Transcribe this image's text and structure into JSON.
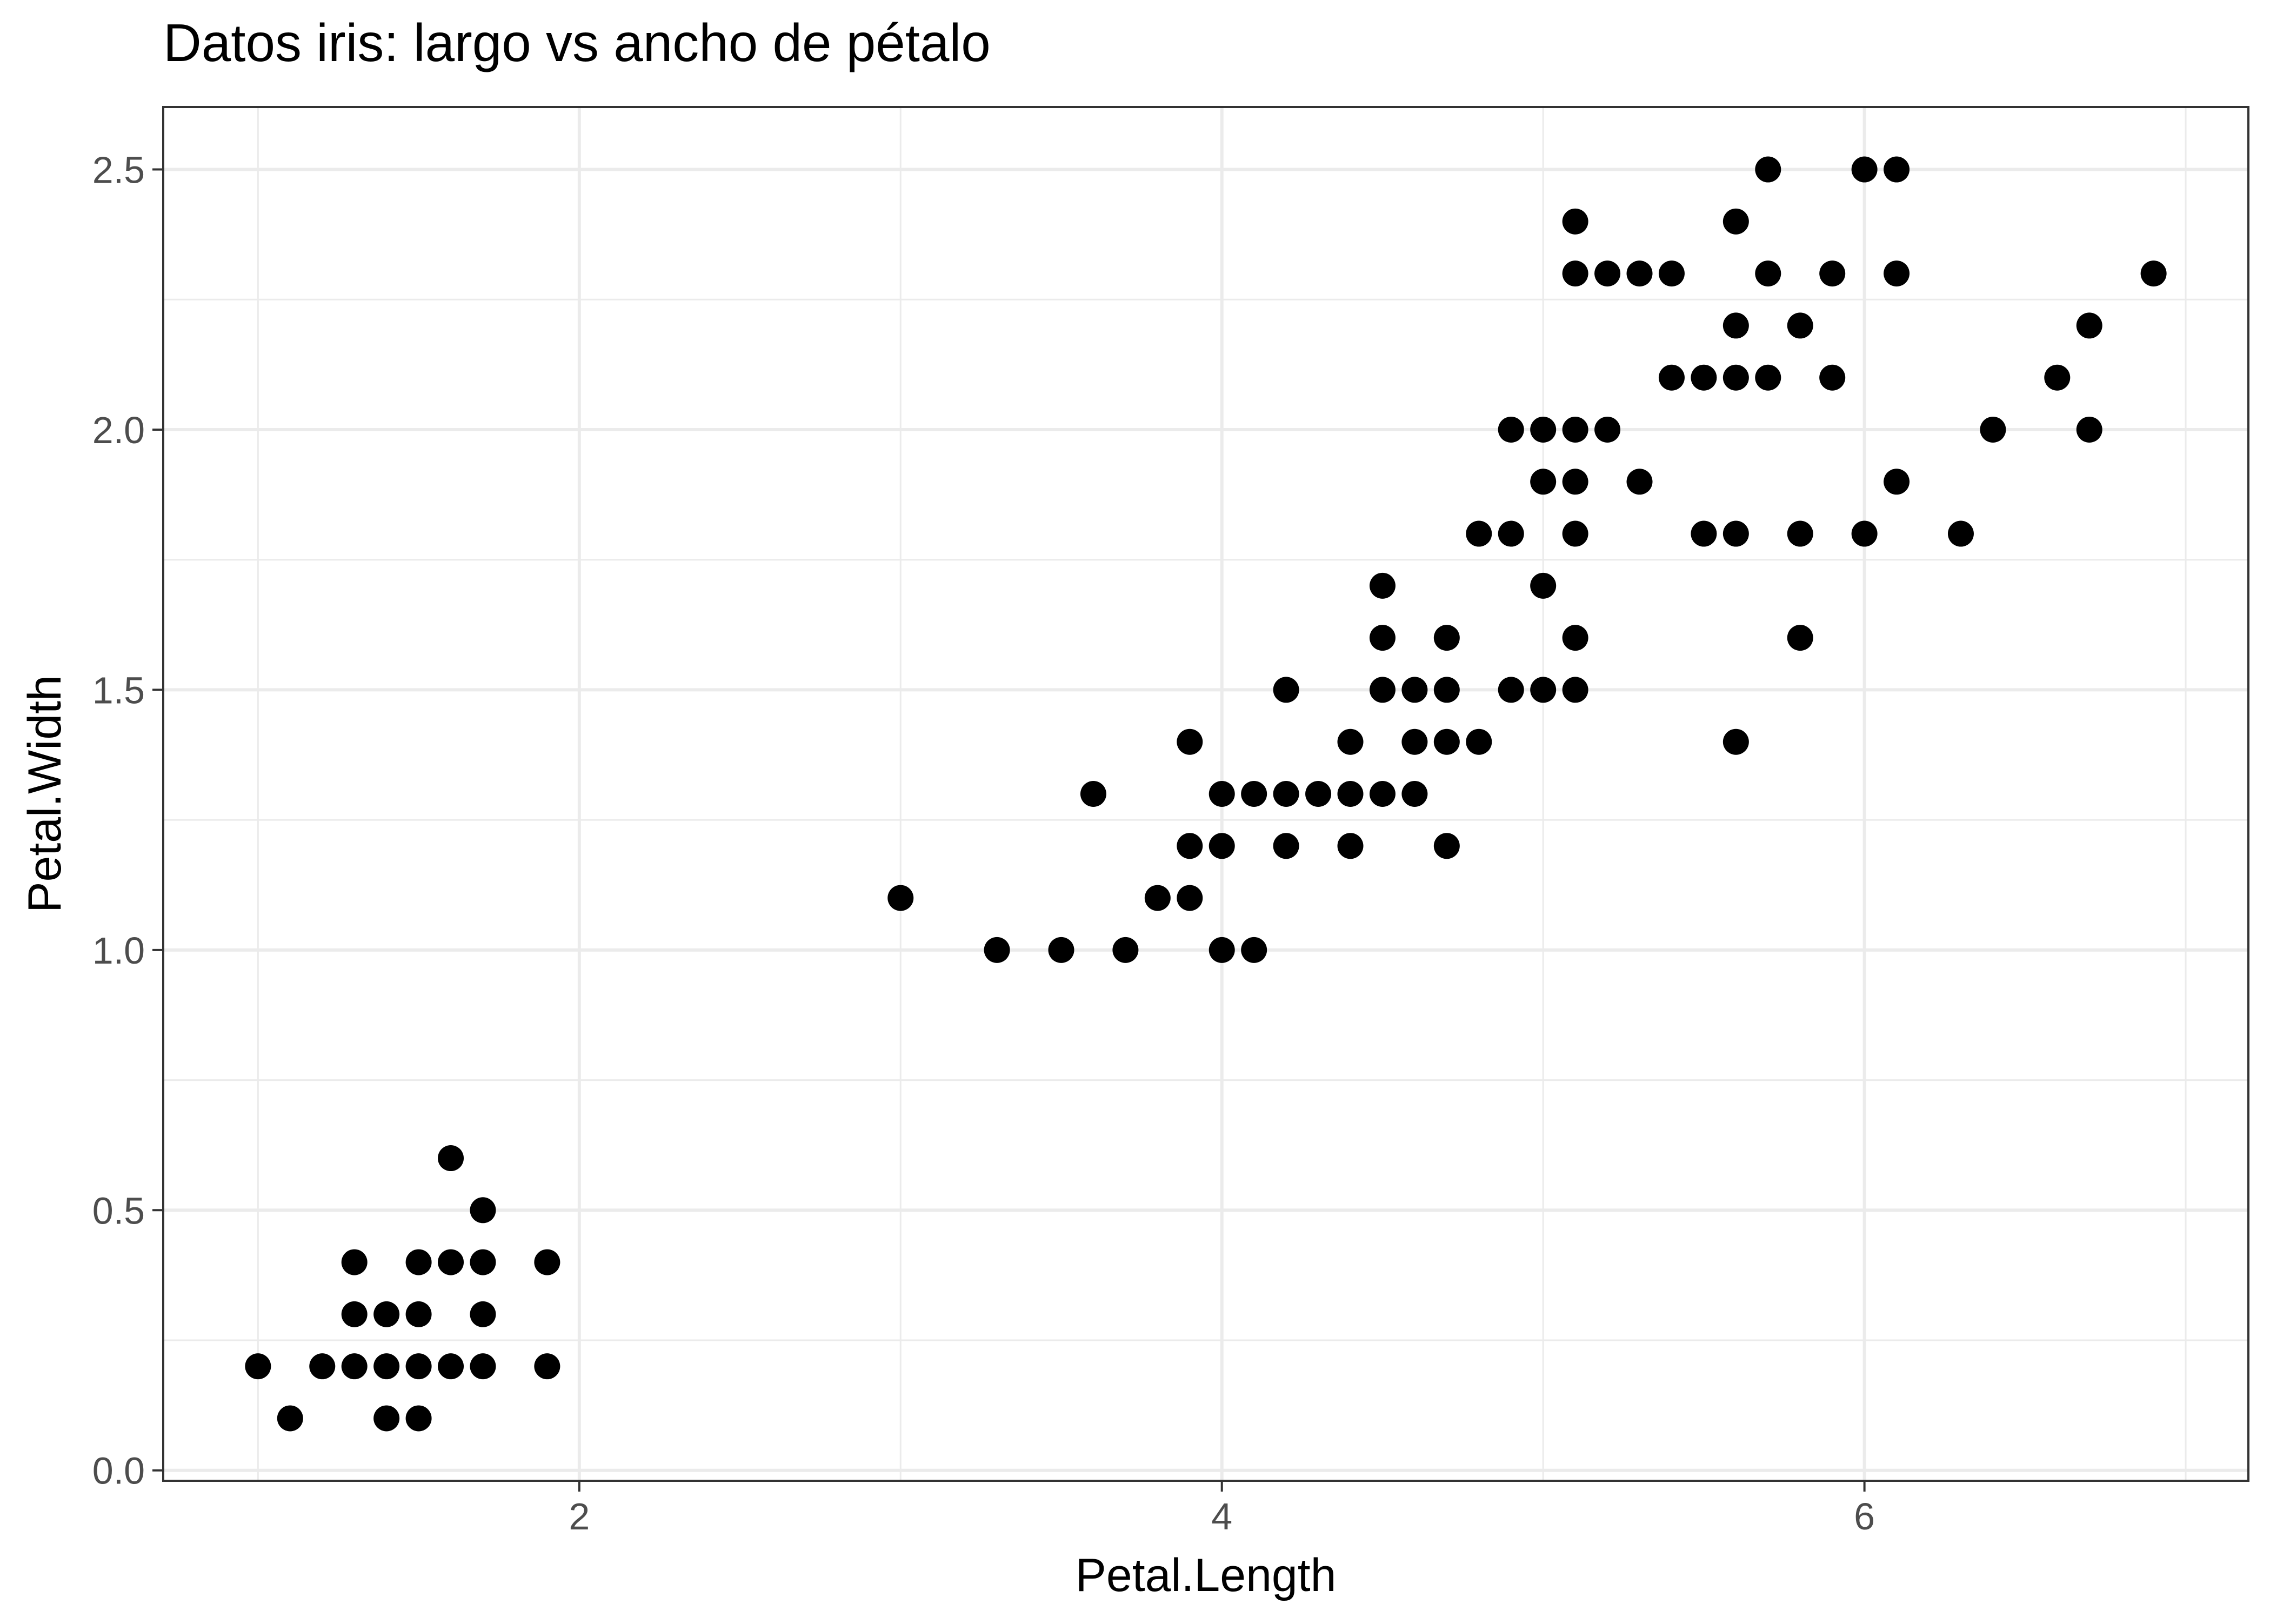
{
  "chart_data": {
    "type": "scatter",
    "title": "Datos iris: largo vs ancho de pétalo",
    "xlabel": "Petal.Length",
    "ylabel": "Petal.Width",
    "xlim": [
      0.705,
      7.195
    ],
    "ylim": [
      -0.02,
      2.62
    ],
    "xticks": [
      2,
      4,
      6
    ],
    "xtick_labels": [
      "2",
      "4",
      "6"
    ],
    "yticks": [
      0.0,
      0.5,
      1.0,
      1.5,
      2.0,
      2.5
    ],
    "ytick_labels": [
      "0.0",
      "0.5",
      "1.0",
      "1.5",
      "2.0",
      "2.5"
    ],
    "x_minor_ticks": [
      1,
      3,
      5,
      7
    ],
    "y_minor_ticks": [
      0.25,
      0.75,
      1.25,
      1.75,
      2.25
    ],
    "grid": true,
    "point_color": "#000000",
    "points": [
      [
        1.0,
        0.2
      ],
      [
        1.1,
        0.1
      ],
      [
        1.2,
        0.2
      ],
      [
        1.3,
        0.2
      ],
      [
        1.3,
        0.3
      ],
      [
        1.3,
        0.4
      ],
      [
        1.4,
        0.1
      ],
      [
        1.4,
        0.2
      ],
      [
        1.4,
        0.3
      ],
      [
        1.5,
        0.1
      ],
      [
        1.5,
        0.2
      ],
      [
        1.5,
        0.3
      ],
      [
        1.5,
        0.4
      ],
      [
        1.6,
        0.2
      ],
      [
        1.6,
        0.4
      ],
      [
        1.6,
        0.6
      ],
      [
        1.7,
        0.2
      ],
      [
        1.7,
        0.3
      ],
      [
        1.7,
        0.4
      ],
      [
        1.7,
        0.5
      ],
      [
        1.9,
        0.2
      ],
      [
        1.9,
        0.4
      ],
      [
        3.0,
        1.1
      ],
      [
        3.3,
        1.0
      ],
      [
        3.5,
        1.0
      ],
      [
        3.6,
        1.3
      ],
      [
        3.7,
        1.0
      ],
      [
        3.8,
        1.1
      ],
      [
        3.9,
        1.1
      ],
      [
        3.9,
        1.2
      ],
      [
        3.9,
        1.4
      ],
      [
        4.0,
        1.0
      ],
      [
        4.0,
        1.2
      ],
      [
        4.0,
        1.3
      ],
      [
        4.1,
        1.0
      ],
      [
        4.1,
        1.3
      ],
      [
        4.2,
        1.2
      ],
      [
        4.2,
        1.3
      ],
      [
        4.2,
        1.5
      ],
      [
        4.3,
        1.3
      ],
      [
        4.4,
        1.2
      ],
      [
        4.4,
        1.3
      ],
      [
        4.4,
        1.4
      ],
      [
        4.5,
        1.3
      ],
      [
        4.5,
        1.5
      ],
      [
        4.5,
        1.6
      ],
      [
        4.5,
        1.7
      ],
      [
        4.6,
        1.3
      ],
      [
        4.6,
        1.4
      ],
      [
        4.6,
        1.5
      ],
      [
        4.7,
        1.2
      ],
      [
        4.7,
        1.4
      ],
      [
        4.7,
        1.5
      ],
      [
        4.7,
        1.6
      ],
      [
        4.8,
        1.4
      ],
      [
        4.8,
        1.8
      ],
      [
        4.9,
        1.5
      ],
      [
        4.9,
        1.8
      ],
      [
        4.9,
        2.0
      ],
      [
        5.0,
        1.5
      ],
      [
        5.0,
        1.7
      ],
      [
        5.0,
        1.9
      ],
      [
        5.0,
        2.0
      ],
      [
        5.1,
        1.5
      ],
      [
        5.1,
        1.6
      ],
      [
        5.1,
        1.8
      ],
      [
        5.1,
        1.9
      ],
      [
        5.1,
        2.0
      ],
      [
        5.1,
        2.3
      ],
      [
        5.1,
        2.4
      ],
      [
        5.2,
        2.0
      ],
      [
        5.2,
        2.3
      ],
      [
        5.3,
        1.9
      ],
      [
        5.3,
        2.3
      ],
      [
        5.4,
        2.1
      ],
      [
        5.4,
        2.3
      ],
      [
        5.5,
        1.8
      ],
      [
        5.5,
        2.1
      ],
      [
        5.6,
        1.4
      ],
      [
        5.6,
        1.8
      ],
      [
        5.6,
        2.1
      ],
      [
        5.6,
        2.2
      ],
      [
        5.6,
        2.4
      ],
      [
        5.7,
        2.1
      ],
      [
        5.7,
        2.3
      ],
      [
        5.7,
        2.5
      ],
      [
        5.8,
        1.6
      ],
      [
        5.8,
        1.8
      ],
      [
        5.8,
        2.2
      ],
      [
        5.9,
        2.1
      ],
      [
        5.9,
        2.3
      ],
      [
        6.0,
        1.8
      ],
      [
        6.0,
        2.5
      ],
      [
        6.1,
        1.9
      ],
      [
        6.1,
        2.3
      ],
      [
        6.1,
        2.5
      ],
      [
        6.3,
        1.8
      ],
      [
        6.4,
        2.0
      ],
      [
        6.6,
        2.1
      ],
      [
        6.7,
        2.0
      ],
      [
        6.7,
        2.2
      ],
      [
        6.9,
        2.3
      ]
    ]
  }
}
